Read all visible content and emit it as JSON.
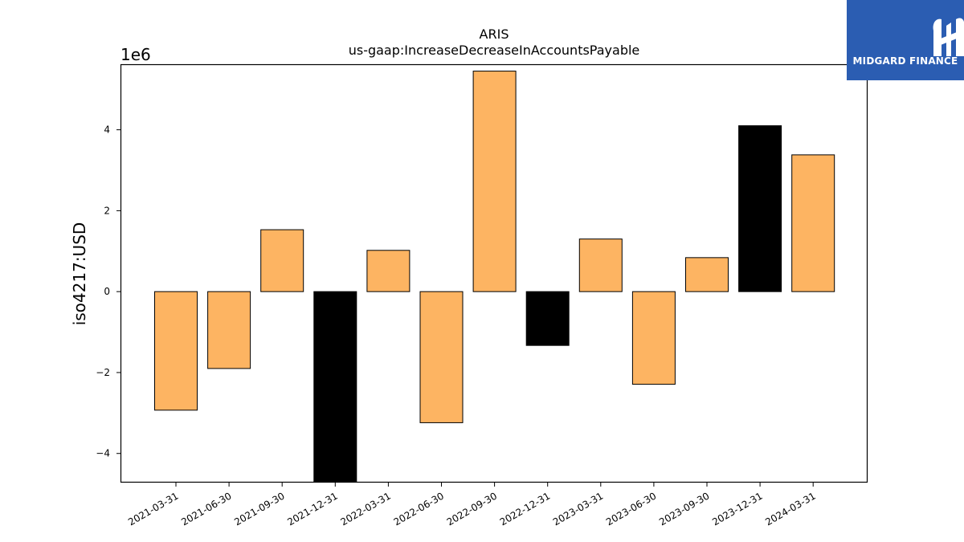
{
  "chart_data": {
    "type": "bar",
    "title": "ARIS",
    "subtitle": "us-gaap:IncreaseDecreaseInAccountsPayable",
    "ylabel": "iso4217:USD",
    "xlabel": "",
    "y_offset_label": "1e6",
    "ylim": [
      -4.7,
      5.6
    ],
    "yticks": [
      -4,
      -2,
      0,
      2,
      4
    ],
    "ytick_labels": [
      "−4",
      "−2",
      "0",
      "2",
      "4"
    ],
    "categories": [
      "2021-03-31",
      "2021-06-30",
      "2021-09-30",
      "2021-12-31",
      "2022-03-31",
      "2022-06-30",
      "2022-09-30",
      "2022-12-31",
      "2023-03-31",
      "2023-06-30",
      "2023-09-30",
      "2023-12-31",
      "2024-03-31"
    ],
    "values": [
      -2.93,
      -1.9,
      1.53,
      -4.8,
      1.02,
      -3.24,
      5.45,
      -1.33,
      1.3,
      -2.29,
      0.84,
      4.1,
      3.38
    ],
    "bar_colors": [
      "#fdb462",
      "#fdb462",
      "#fdb462",
      "#000000",
      "#fdb462",
      "#fdb462",
      "#fdb462",
      "#000000",
      "#fdb462",
      "#fdb462",
      "#fdb462",
      "#000000",
      "#fdb462"
    ],
    "grid": false,
    "legend": "none"
  },
  "logo": {
    "text": "MIDGARD FINANCE",
    "background": "#2b5db2"
  }
}
